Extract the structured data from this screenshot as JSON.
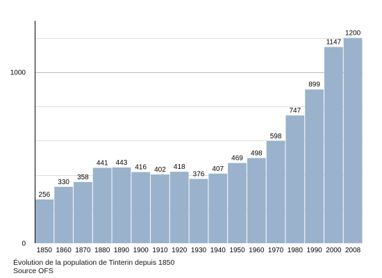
{
  "colors": {
    "bar": "#9bb2cc",
    "grid_major": "#bbbbbb",
    "grid_minor": "#dddddd",
    "axis": "#000000",
    "text": "#000000"
  },
  "caption": {
    "line1": "Évolution de la population de Tinterin depuis 1850",
    "line2": "Source OFS"
  },
  "chart_data": {
    "type": "bar",
    "title": "",
    "xlabel": "",
    "ylabel": "",
    "categories": [
      "1850",
      "1860",
      "1870",
      "1880",
      "1890",
      "1900",
      "1910",
      "1920",
      "1930",
      "1940",
      "1950",
      "1960",
      "1970",
      "1980",
      "1990",
      "2000",
      "2008"
    ],
    "values": [
      256,
      330,
      358,
      441,
      443,
      416,
      402,
      418,
      376,
      407,
      469,
      498,
      598,
      747,
      899,
      1147,
      1200
    ],
    "data_labels": [
      "256",
      "330",
      "358",
      "441",
      "443",
      "416",
      "402",
      "418",
      "376",
      "407",
      "469",
      "498",
      "598",
      "747",
      "899",
      "1147",
      "1200"
    ],
    "ylim": [
      0,
      1300
    ],
    "y_tick_labels": [
      {
        "value": 0,
        "label": "0"
      },
      {
        "value": 1000,
        "label": "1000"
      }
    ],
    "gridlines_major": [
      1000
    ],
    "gridlines_minor": [
      200,
      400,
      600,
      800,
      1200
    ],
    "grid": true,
    "legend": "none"
  }
}
